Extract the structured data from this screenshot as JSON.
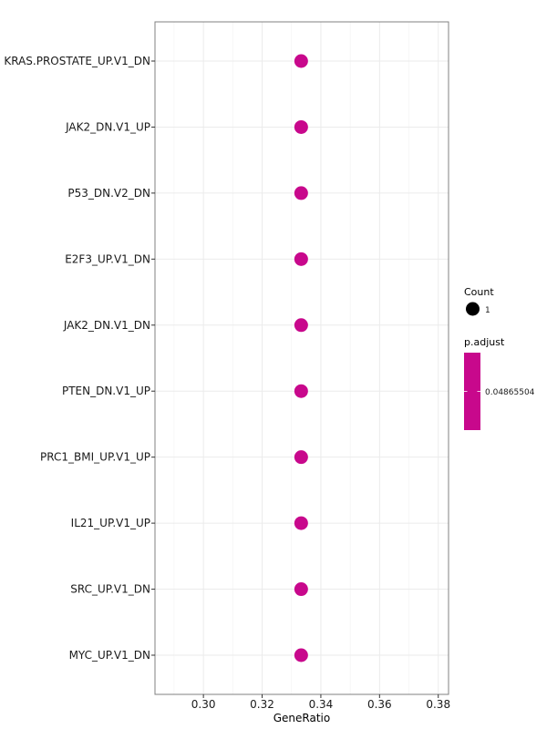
{
  "chart_data": {
    "type": "scatter",
    "title": "",
    "xlabel": "GeneRatio",
    "ylabel": "",
    "xlim": [
      0.2835,
      0.3835
    ],
    "xticks": [
      0.3,
      0.32,
      0.34,
      0.36,
      0.38
    ],
    "xtick_labels": [
      "0.30",
      "0.32",
      "0.34",
      "0.36",
      "0.38"
    ],
    "categories": [
      "KRAS.PROSTATE_UP.V1_DN",
      "JAK2_DN.V1_UP",
      "P53_DN.V2_DN",
      "E2F3_UP.V1_DN",
      "JAK2_DN.V1_DN",
      "PTEN_DN.V1_UP",
      "PRC1_BMI_UP.V1_UP",
      "IL21_UP.V1_UP",
      "SRC_UP.V1_DN",
      "MYC_UP.V1_DN"
    ],
    "points": [
      {
        "term": "KRAS.PROSTATE_UP.V1_DN",
        "gene_ratio": 0.3333,
        "count": 1,
        "p_adjust": 0.04865504
      },
      {
        "term": "JAK2_DN.V1_UP",
        "gene_ratio": 0.3333,
        "count": 1,
        "p_adjust": 0.04865504
      },
      {
        "term": "P53_DN.V2_DN",
        "gene_ratio": 0.3333,
        "count": 1,
        "p_adjust": 0.04865504
      },
      {
        "term": "E2F3_UP.V1_DN",
        "gene_ratio": 0.3333,
        "count": 1,
        "p_adjust": 0.04865504
      },
      {
        "term": "JAK2_DN.V1_DN",
        "gene_ratio": 0.3333,
        "count": 1,
        "p_adjust": 0.04865504
      },
      {
        "term": "PTEN_DN.V1_UP",
        "gene_ratio": 0.3333,
        "count": 1,
        "p_adjust": 0.04865504
      },
      {
        "term": "PRC1_BMI_UP.V1_UP",
        "gene_ratio": 0.3333,
        "count": 1,
        "p_adjust": 0.04865504
      },
      {
        "term": "IL21_UP.V1_UP",
        "gene_ratio": 0.3333,
        "count": 1,
        "p_adjust": 0.04865504
      },
      {
        "term": "SRC_UP.V1_DN",
        "gene_ratio": 0.3333,
        "count": 1,
        "p_adjust": 0.04865504
      },
      {
        "term": "MYC_UP.V1_DN",
        "gene_ratio": 0.3333,
        "count": 1,
        "p_adjust": 0.04865504
      }
    ],
    "grid": true,
    "legend_position": "right",
    "point_color": "#C8088C",
    "legend": {
      "count_title": "Count",
      "count_label": "1",
      "padjust_title": "p.adjust",
      "padjust_label": "0.04865504",
      "count_key_color": "#000000",
      "padjust_color": "#C8088C"
    }
  }
}
